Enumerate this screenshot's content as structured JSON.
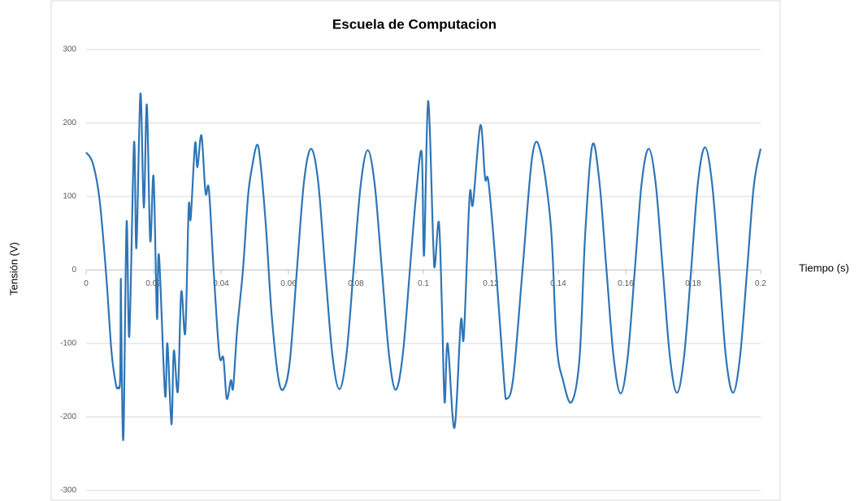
{
  "chart_data": {
    "type": "line",
    "title": "Escuela de Computacion",
    "x_label": "Tiempo (s)",
    "y_label": "Tensión (V)",
    "color": "#2e75b6",
    "grid": true,
    "xlim": [
      0,
      0.2
    ],
    "ylim": [
      -300,
      300
    ],
    "xticks": [
      0,
      0.02,
      0.04,
      0.06,
      0.08,
      0.1,
      0.12,
      0.14,
      0.16,
      0.18,
      0.2
    ],
    "yticks": [
      -300,
      -200,
      -100,
      0,
      100,
      200,
      300
    ],
    "x": [
      0,
      0.002,
      0.004,
      0.006,
      0.0075,
      0.0088,
      0.0095,
      0.0101,
      0.0103,
      0.0106,
      0.0111,
      0.012,
      0.0128,
      0.0142,
      0.0149,
      0.0161,
      0.0171,
      0.018,
      0.019,
      0.02,
      0.021,
      0.0216,
      0.0234,
      0.0241,
      0.0253,
      0.026,
      0.0272,
      0.0282,
      0.0294,
      0.0304,
      0.031,
      0.0323,
      0.033,
      0.0342,
      0.0354,
      0.0364,
      0.0378,
      0.0395,
      0.0407,
      0.0417,
      0.0429,
      0.0436,
      0.0448,
      0.0465,
      0.048,
      0.0492,
      0.0506,
      0.0516,
      0.0533,
      0.055,
      0.0571,
      0.0588,
      0.0605,
      0.0625,
      0.0646,
      0.0667,
      0.0688,
      0.0709,
      0.073,
      0.0751,
      0.0772,
      0.0793,
      0.0814,
      0.0835,
      0.0856,
      0.0877,
      0.0898,
      0.0918,
      0.0939,
      0.096,
      0.0978,
      0.0995,
      0.1002,
      0.1014,
      0.1029,
      0.1034,
      0.1046,
      0.1055,
      0.1063,
      0.1072,
      0.1092,
      0.1111,
      0.112,
      0.1137,
      0.1147,
      0.1169,
      0.1183,
      0.1193,
      0.1214,
      0.1239,
      0.1248,
      0.1267,
      0.1294,
      0.1323,
      0.1347,
      0.1378,
      0.1395,
      0.1414,
      0.1439,
      0.1463,
      0.148,
      0.1501,
      0.1522,
      0.1543,
      0.1564,
      0.1585,
      0.1606,
      0.1627,
      0.1647,
      0.1668,
      0.1689,
      0.171,
      0.1731,
      0.1752,
      0.1773,
      0.1794,
      0.1814,
      0.1835,
      0.1856,
      0.1877,
      0.1897,
      0.1918,
      0.1939,
      0.196,
      0.198,
      0.2
    ],
    "values": [
      160,
      145,
      95,
      -10,
      -110,
      -155,
      -160,
      -145,
      -12,
      -150,
      -222,
      65,
      -90,
      173,
      30,
      240,
      85,
      225,
      40,
      127,
      -65,
      20,
      -170,
      -100,
      -210,
      -110,
      -165,
      -30,
      -85,
      85,
      70,
      172,
      140,
      183,
      105,
      110,
      0,
      -115,
      -120,
      -175,
      -150,
      -160,
      -80,
      0,
      100,
      140,
      170,
      150,
      60,
      -60,
      -150,
      -160,
      -120,
      0,
      120,
      165,
      120,
      0,
      -115,
      -162,
      -115,
      0,
      115,
      163,
      115,
      0,
      -115,
      -163,
      -115,
      0,
      100,
      160,
      20,
      230,
      40,
      5,
      65,
      -50,
      -180,
      -100,
      -215,
      -70,
      -90,
      100,
      90,
      197,
      125,
      120,
      10,
      -150,
      -175,
      -145,
      0,
      155,
      162,
      60,
      -100,
      -150,
      -180,
      -120,
      50,
      170,
      120,
      0,
      -118,
      -168,
      -118,
      0,
      117,
      165,
      117,
      0,
      -118,
      -167,
      -118,
      0,
      118,
      167,
      118,
      0,
      -118,
      -167,
      -118,
      0,
      115,
      165
    ]
  }
}
